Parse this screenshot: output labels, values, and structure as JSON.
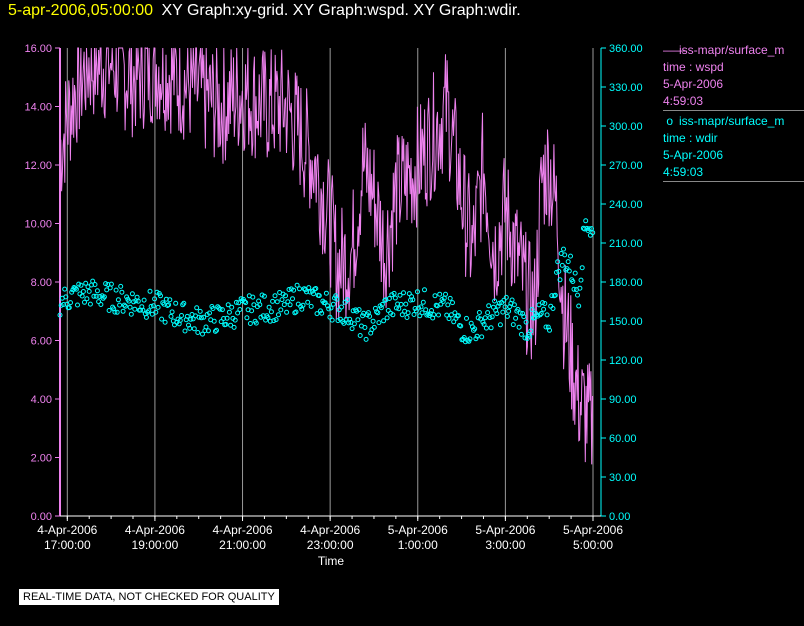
{
  "header": {
    "timestamp": "5-apr-2006,05:00:00",
    "titles": "XY Graph:xy-grid.  XY Graph:wspd.  XY Graph:wdir."
  },
  "legend": {
    "wspd": {
      "name": "iss-mapr/surface_m",
      "field": "time : wspd",
      "date": "5-Apr-2006",
      "time": "4:59:03",
      "color": "#ee82ee"
    },
    "wdir": {
      "name": "iss-mapr/surface_m",
      "field": "time : wdir",
      "date": "5-Apr-2006",
      "time": "4:59:03",
      "color": "#00ffff"
    }
  },
  "disclaimer": "REAL-TIME DATA, NOT CHECKED FOR QUALITY",
  "chart_data": {
    "type": "line",
    "xlabel": "Time",
    "x_ticks": [
      [
        "4-Apr-2006",
        "17:00:00"
      ],
      [
        "4-Apr-2006",
        "19:00:00"
      ],
      [
        "4-Apr-2006",
        "21:00:00"
      ],
      [
        "4-Apr-2006",
        "23:00:00"
      ],
      [
        "5-Apr-2006",
        "1:00:00"
      ],
      [
        "5-Apr-2006",
        "3:00:00"
      ],
      [
        "5-Apr-2006",
        "5:00:00"
      ]
    ],
    "xlim": [
      "4-Apr-2006 16:50",
      "5-Apr-2006 5:00"
    ],
    "y_left": {
      "ticks": [
        "0.00",
        "2.00",
        "4.00",
        "6.00",
        "8.00",
        "10.00",
        "12.00",
        "14.00",
        "16.00"
      ],
      "lim": [
        0,
        16
      ],
      "color": "#ee82ee"
    },
    "y_right": {
      "ticks": [
        "0.00",
        "30.00",
        "60.00",
        "90.00",
        "120.00",
        "150.00",
        "180.00",
        "210.00",
        "240.00",
        "270.00",
        "300.00",
        "330.00",
        "360.00"
      ],
      "lim": [
        0,
        360
      ],
      "color": "#00ffff"
    },
    "grid": "vertical",
    "series": [
      {
        "name": "iss-mapr/surface_m time : wspd",
        "axis": "left",
        "style": "line",
        "color": "#ee82ee",
        "x": [
          "16:50",
          "17:10",
          "17:30",
          "18:00",
          "18:30",
          "19:00",
          "19:30",
          "20:00",
          "20:30",
          "21:00",
          "21:30",
          "22:00",
          "22:20",
          "22:40",
          "23:00",
          "23:10",
          "23:30",
          "23:45",
          "00:00",
          "00:15",
          "00:30",
          "01:00",
          "01:20",
          "01:40",
          "02:00",
          "02:15",
          "02:30",
          "02:45",
          "03:00",
          "03:15",
          "03:30",
          "03:40",
          "03:50",
          "04:00",
          "04:10",
          "04:20",
          "04:30",
          "04:40",
          "04:50",
          "05:00"
        ],
        "y": [
          12.5,
          14.5,
          15.5,
          15.5,
          15.0,
          15.5,
          15.0,
          14.5,
          14.0,
          14.5,
          14.0,
          14.0,
          13.0,
          12.0,
          10.0,
          8.5,
          9.0,
          12.0,
          11.0,
          9.0,
          11.0,
          12.0,
          13.0,
          14.0,
          11.0,
          9.0,
          12.0,
          9.0,
          10.5,
          9.0,
          7.5,
          7.0,
          11.5,
          12.0,
          10.5,
          7.0,
          5.5,
          4.0,
          3.5,
          3.0
        ]
      },
      {
        "name": "iss-mapr/surface_m time : wdir",
        "axis": "right",
        "style": "markers",
        "color": "#00ffff",
        "x": [
          "16:50",
          "17:10",
          "17:30",
          "18:00",
          "18:30",
          "19:00",
          "19:30",
          "20:00",
          "20:30",
          "21:00",
          "21:30",
          "22:00",
          "22:20",
          "22:40",
          "23:00",
          "23:10",
          "23:30",
          "23:45",
          "00:00",
          "00:15",
          "00:30",
          "01:00",
          "01:20",
          "01:40",
          "02:00",
          "02:15",
          "02:30",
          "02:45",
          "03:00",
          "03:15",
          "03:30",
          "03:40",
          "03:50",
          "04:00",
          "04:10",
          "04:20",
          "04:30",
          "04:40",
          "04:50",
          "05:00"
        ],
        "y": [
          165,
          170,
          172,
          168,
          165,
          162,
          155,
          150,
          152,
          158,
          160,
          162,
          170,
          165,
          162,
          160,
          155,
          145,
          150,
          160,
          162,
          165,
          162,
          160,
          145,
          142,
          150,
          155,
          160,
          155,
          145,
          150,
          155,
          150,
          185,
          200,
          190,
          170,
          230,
          215
        ]
      }
    ]
  }
}
